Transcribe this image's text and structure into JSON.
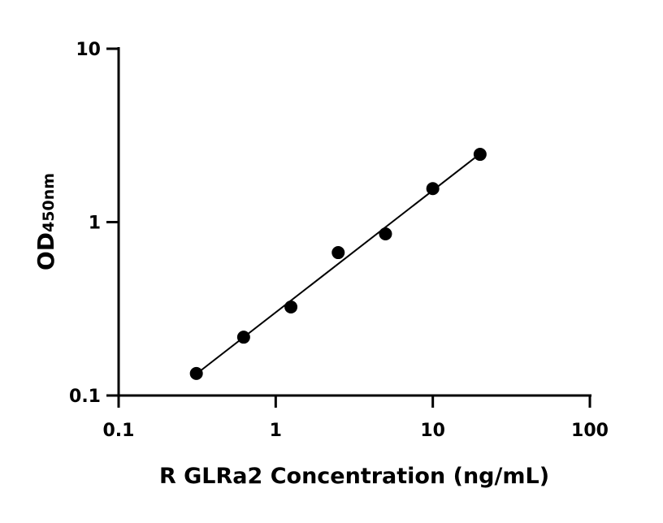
{
  "chart_data": {
    "type": "scatter",
    "title": "",
    "xlabel": "R GLRa2 Concentration (ng/mL)",
    "ylabel_main": "OD",
    "ylabel_sub": "450nm",
    "x_scale": "log",
    "y_scale": "log",
    "xlim": [
      0.1,
      100
    ],
    "ylim": [
      0.1,
      10
    ],
    "x_ticks": [
      0.1,
      1,
      10,
      100
    ],
    "x_tick_labels": [
      "0.1",
      "1",
      "10",
      "100"
    ],
    "y_ticks": [
      0.1,
      1,
      10
    ],
    "y_tick_labels": [
      "0.1",
      "1",
      "10"
    ],
    "grid": false,
    "legend": "none",
    "fit": "linear regression on log-log axes",
    "points": {
      "x": [
        0.3125,
        0.625,
        1.25,
        2.5,
        5,
        10,
        20
      ],
      "y": [
        0.134,
        0.217,
        0.324,
        0.667,
        0.855,
        1.56,
        2.46
      ]
    },
    "color": "#000000"
  }
}
